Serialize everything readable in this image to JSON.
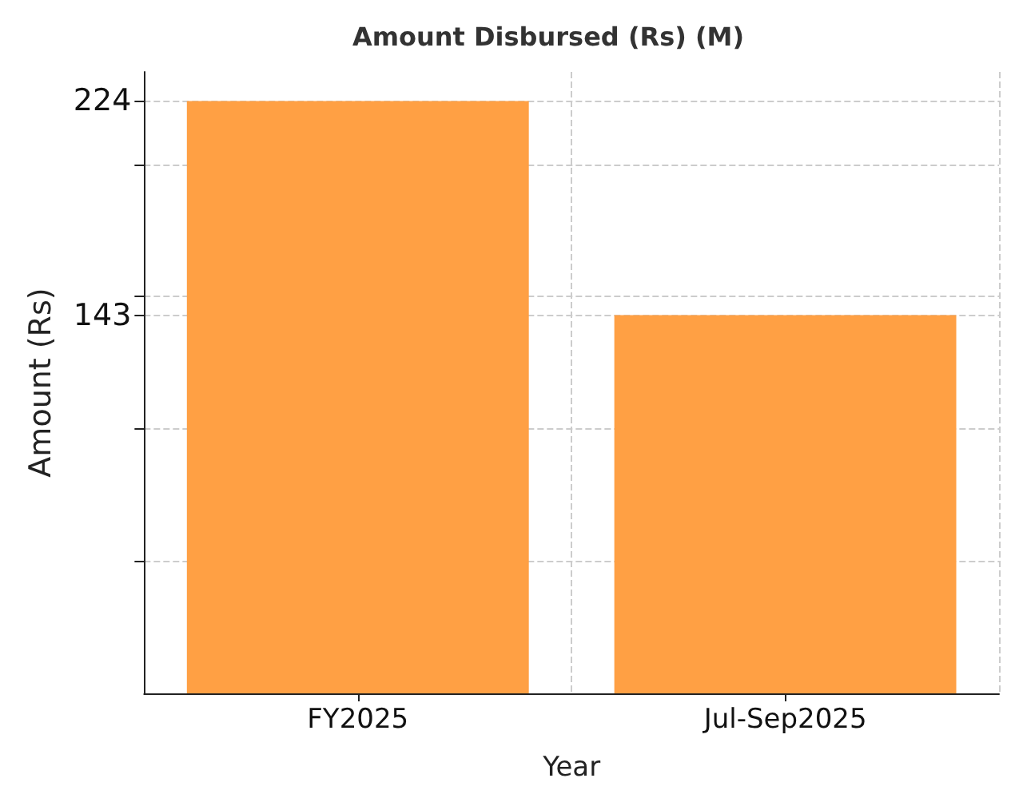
{
  "chart_data": {
    "type": "bar",
    "title": "Amount Disbursed (Rs) (M)",
    "xlabel": "Year",
    "ylabel": "Amount (Rs)",
    "categories": [
      "FY2025",
      "Jul-Sep2025"
    ],
    "values": [
      224,
      143
    ],
    "color": "#ffa044",
    "ylim": [
      0,
      235
    ],
    "yticks": [
      {
        "value": 50,
        "label": null
      },
      {
        "value": 100,
        "label": null
      },
      {
        "value": 143,
        "label": "143"
      },
      {
        "value": 150,
        "label": null
      },
      {
        "value": 200,
        "label": null
      },
      {
        "value": 224,
        "label": "224"
      }
    ],
    "grid": true
  }
}
